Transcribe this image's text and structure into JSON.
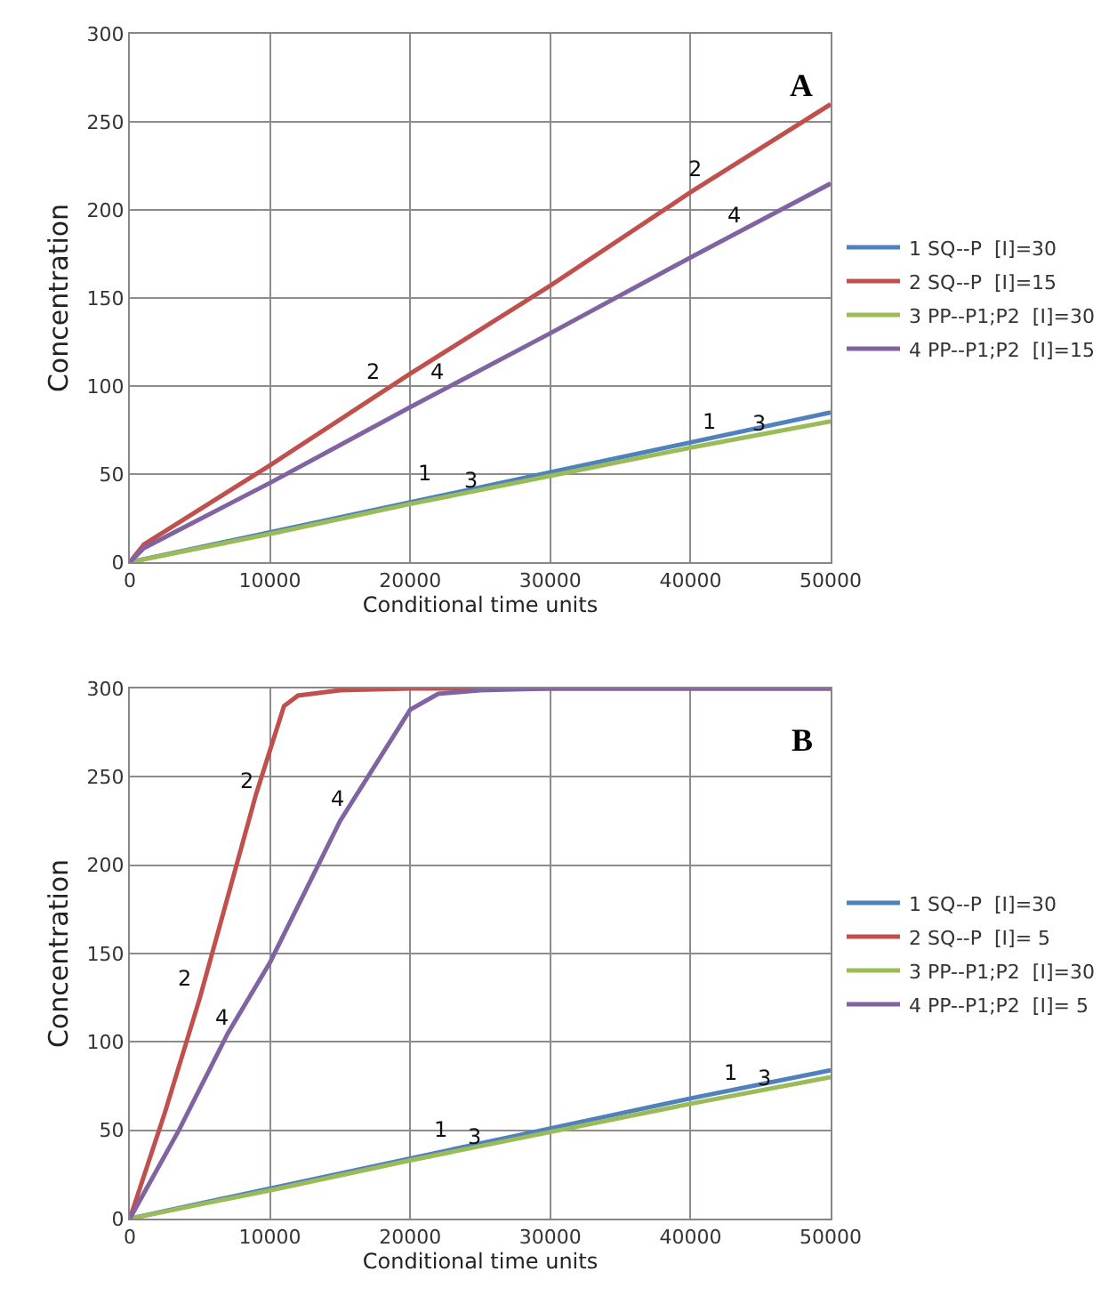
{
  "chart_data": [
    {
      "type": "line",
      "title": "A",
      "xlabel": "Conditional time units",
      "ylabel": "Concentration",
      "xlim": [
        0,
        50000
      ],
      "ylim": [
        0,
        300
      ],
      "xticks": [
        0,
        10000,
        20000,
        30000,
        40000,
        50000
      ],
      "yticks": [
        0,
        50,
        100,
        150,
        200,
        250,
        300
      ],
      "grid": true,
      "legend": "right",
      "marker": "none",
      "line_style": "solid",
      "series": [
        {
          "name": "1 SQ--P  [I]=30",
          "color": "#4f81bd",
          "x": [
            0,
            10000,
            20000,
            30000,
            40000,
            50000
          ],
          "values": [
            0,
            17,
            34,
            51,
            68,
            85
          ]
        },
        {
          "name": "2 SQ--P  [I]=15",
          "color": "#c0504d",
          "x": [
            0,
            1000,
            10000,
            20000,
            30000,
            40000,
            50000
          ],
          "values": [
            0,
            10,
            55,
            107,
            157,
            210,
            260
          ]
        },
        {
          "name": "3 PP--P1;P2  [I]=30",
          "color": "#9bbb59",
          "x": [
            0,
            10000,
            20000,
            30000,
            40000,
            50000
          ],
          "values": [
            0,
            16,
            33,
            49,
            65,
            80
          ]
        },
        {
          "name": "4 PP--P1;P2  [I]=15",
          "color": "#8064a2",
          "x": [
            0,
            1000,
            10000,
            20000,
            30000,
            40000,
            50000
          ],
          "values": [
            0,
            8,
            45,
            88,
            130,
            173,
            215
          ]
        }
      ],
      "annotations": [
        {
          "text": "2",
          "x": 18000,
          "y": 100
        },
        {
          "text": "4",
          "x": 22600,
          "y": 100
        },
        {
          "text": "2",
          "x": 41000,
          "y": 215
        },
        {
          "text": "4",
          "x": 43800,
          "y": 189
        },
        {
          "text": "1",
          "x": 21700,
          "y": 42
        },
        {
          "text": "3",
          "x": 25000,
          "y": 38
        },
        {
          "text": "1",
          "x": 42000,
          "y": 72
        },
        {
          "text": "3",
          "x": 45500,
          "y": 71
        }
      ]
    },
    {
      "type": "line",
      "title": "B",
      "xlabel": "Conditional time units",
      "ylabel": "Concentration",
      "xlim": [
        0,
        50000
      ],
      "ylim": [
        0,
        300
      ],
      "xticks": [
        0,
        10000,
        20000,
        30000,
        40000,
        50000
      ],
      "yticks": [
        0,
        50,
        100,
        150,
        200,
        250,
        300
      ],
      "grid": true,
      "legend": "right",
      "marker": "none",
      "line_style": "solid",
      "series": [
        {
          "name": "1 SQ--P  [I]=30",
          "color": "#4f81bd",
          "x": [
            0,
            10000,
            20000,
            30000,
            40000,
            50000
          ],
          "values": [
            0,
            17,
            34,
            51,
            68,
            84
          ]
        },
        {
          "name": "2 SQ--P  [I]= 5",
          "color": "#c0504d",
          "x": [
            0,
            2500,
            5000,
            9000,
            11000,
            12000,
            15000,
            20000,
            50000
          ],
          "values": [
            0,
            60,
            125,
            240,
            290,
            296,
            299,
            300,
            300
          ]
        },
        {
          "name": "3 PP--P1;P2  [I]=30",
          "color": "#9bbb59",
          "x": [
            0,
            10000,
            20000,
            30000,
            40000,
            50000
          ],
          "values": [
            0,
            16,
            33,
            49,
            65,
            80
          ]
        },
        {
          "name": "4 PP--P1;P2  [I]= 5",
          "color": "#8064a2",
          "x": [
            0,
            3500,
            7000,
            10000,
            15000,
            20000,
            22000,
            25000,
            30000,
            50000
          ],
          "values": [
            0,
            50,
            105,
            145,
            225,
            288,
            297,
            299,
            300,
            300
          ]
        }
      ],
      "annotations": [
        {
          "text": "2",
          "x": 9000,
          "y": 240
        },
        {
          "text": "4",
          "x": 15500,
          "y": 230
        },
        {
          "text": "2",
          "x": 4600,
          "y": 128
        },
        {
          "text": "4",
          "x": 7200,
          "y": 106
        },
        {
          "text": "1",
          "x": 22800,
          "y": 42
        },
        {
          "text": "3",
          "x": 25200,
          "y": 38
        },
        {
          "text": "1",
          "x": 43500,
          "y": 75
        },
        {
          "text": "3",
          "x": 46000,
          "y": 71
        }
      ]
    }
  ]
}
